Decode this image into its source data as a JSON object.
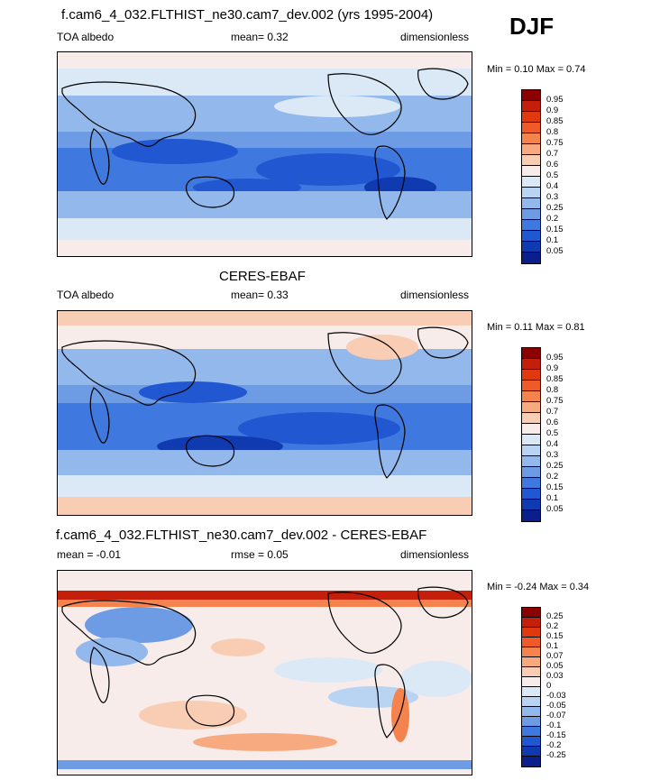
{
  "season": "DJF",
  "panels": [
    {
      "title": "f.cam6_4_032.FLTHIST_ne30.cam7_dev.002 (yrs 1995-2004)",
      "left_label": "TOA albedo",
      "center_label": "mean=  0.32",
      "right_label": "dimensionless",
      "min_max": "Min =  0.10 Max =  0.74",
      "levels": [
        "0.95",
        "0.9",
        "0.85",
        "0.8",
        "0.75",
        "0.7",
        "0.6",
        "0.5",
        "0.4",
        "0.3",
        "0.25",
        "0.2",
        "0.15",
        "0.1",
        "0.05"
      ],
      "colors": [
        "#8b0000",
        "#c41f0a",
        "#e0380f",
        "#ef5a2a",
        "#f5834e",
        "#f7a97f",
        "#f8cdb3",
        "#f7ecea",
        "#dbe9f7",
        "#b9d3f2",
        "#93b8ec",
        "#6d9ce5",
        "#3f78de",
        "#2157d1",
        "#103bb0",
        "#0a1f8c"
      ]
    },
    {
      "title": "CERES-EBAF",
      "left_label": "TOA albedo",
      "center_label": "mean=  0.33",
      "right_label": "dimensionless",
      "min_max": "Min =  0.11 Max =  0.81",
      "levels": [
        "0.95",
        "0.9",
        "0.85",
        "0.8",
        "0.75",
        "0.7",
        "0.6",
        "0.5",
        "0.4",
        "0.3",
        "0.25",
        "0.2",
        "0.15",
        "0.1",
        "0.05"
      ],
      "colors": [
        "#8b0000",
        "#c41f0a",
        "#e0380f",
        "#ef5a2a",
        "#f5834e",
        "#f7a97f",
        "#f8cdb3",
        "#f7ecea",
        "#dbe9f7",
        "#b9d3f2",
        "#93b8ec",
        "#6d9ce5",
        "#3f78de",
        "#2157d1",
        "#103bb0",
        "#0a1f8c"
      ]
    },
    {
      "title": "f.cam6_4_032.FLTHIST_ne30.cam7_dev.002 - CERES-EBAF",
      "left_label": "mean =  -0.01",
      "center_label": "rmse =  0.05",
      "right_label": "dimensionless",
      "min_max": "Min =  -0.24 Max =  0.34",
      "levels": [
        "0.25",
        "0.2",
        "0.15",
        "0.1",
        "0.07",
        "0.05",
        "0.03",
        "0",
        "-0.03",
        "-0.05",
        "-0.07",
        "-0.1",
        "-0.15",
        "-0.2",
        "-0.25"
      ],
      "colors": [
        "#8b0000",
        "#c41f0a",
        "#e0380f",
        "#ef5a2a",
        "#f5834e",
        "#f7a97f",
        "#f8cdb3",
        "#f7ecea",
        "#dbe9f7",
        "#b9d3f2",
        "#93b8ec",
        "#6d9ce5",
        "#3f78de",
        "#2157d1",
        "#103bb0",
        "#0a1f8c"
      ]
    }
  ]
}
